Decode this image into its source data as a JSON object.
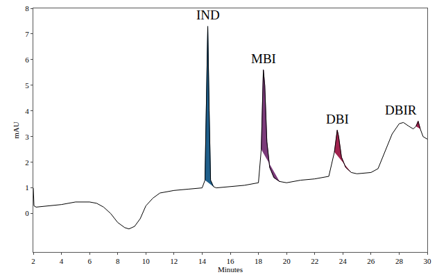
{
  "chart_data": {
    "type": "line",
    "x_label": "Minutes",
    "y_label": "mAU",
    "xlim": [
      2,
      30
    ],
    "ylim": [
      -1.5,
      8
    ],
    "xticks": [
      2,
      4,
      6,
      8,
      10,
      12,
      14,
      16,
      18,
      20,
      22,
      24,
      26,
      28,
      30
    ],
    "yticks": [
      0,
      1,
      2,
      3,
      4,
      5,
      6,
      7,
      8
    ],
    "grid": false,
    "color": "#000000",
    "x": [
      2,
      2.05,
      2.2,
      3,
      4,
      5,
      6,
      6.5,
      7,
      7.5,
      8,
      8.5,
      8.8,
      9.2,
      9.6,
      10,
      10.5,
      11,
      12,
      13,
      14,
      14.2,
      14.3,
      14.4,
      14.5,
      14.6,
      14.8,
      15,
      16,
      17,
      18,
      18.2,
      18.35,
      18.45,
      18.6,
      18.8,
      19.1,
      19.5,
      20,
      21,
      22,
      23,
      23.4,
      23.6,
      23.7,
      23.9,
      24.2,
      24.6,
      25,
      26,
      26.5,
      27,
      27.5,
      28,
      28.3,
      28.7,
      29,
      29.2,
      29.35,
      29.5,
      29.7,
      30
    ],
    "values": [
      1.0,
      0.3,
      0.25,
      0.3,
      0.35,
      0.45,
      0.45,
      0.4,
      0.25,
      0.0,
      -0.35,
      -0.55,
      -0.6,
      -0.5,
      -0.2,
      0.3,
      0.6,
      0.8,
      0.9,
      0.95,
      1.0,
      1.3,
      4.5,
      7.3,
      4.0,
      1.3,
      1.05,
      1.0,
      1.05,
      1.1,
      1.2,
      2.5,
      5.6,
      5.0,
      2.8,
      1.8,
      1.4,
      1.25,
      1.2,
      1.3,
      1.35,
      1.45,
      2.4,
      3.25,
      3.0,
      2.2,
      1.8,
      1.6,
      1.55,
      1.6,
      1.75,
      2.4,
      3.1,
      3.5,
      3.55,
      3.4,
      3.3,
      3.4,
      3.6,
      3.3,
      3.0,
      2.9
    ],
    "peaks": [
      {
        "label": "IND",
        "color": "#1f5f8b",
        "start": 14.2,
        "end": 14.8
      },
      {
        "label": "MBI",
        "color": "#7b3b7a",
        "start": 18.2,
        "end": 19.5
      },
      {
        "label": "DBI",
        "color": "#a1234f",
        "start": 23.4,
        "end": 24.6
      },
      {
        "label": "DBIR",
        "color": "#a1234f",
        "start": 29.2,
        "end": 29.5
      }
    ]
  }
}
